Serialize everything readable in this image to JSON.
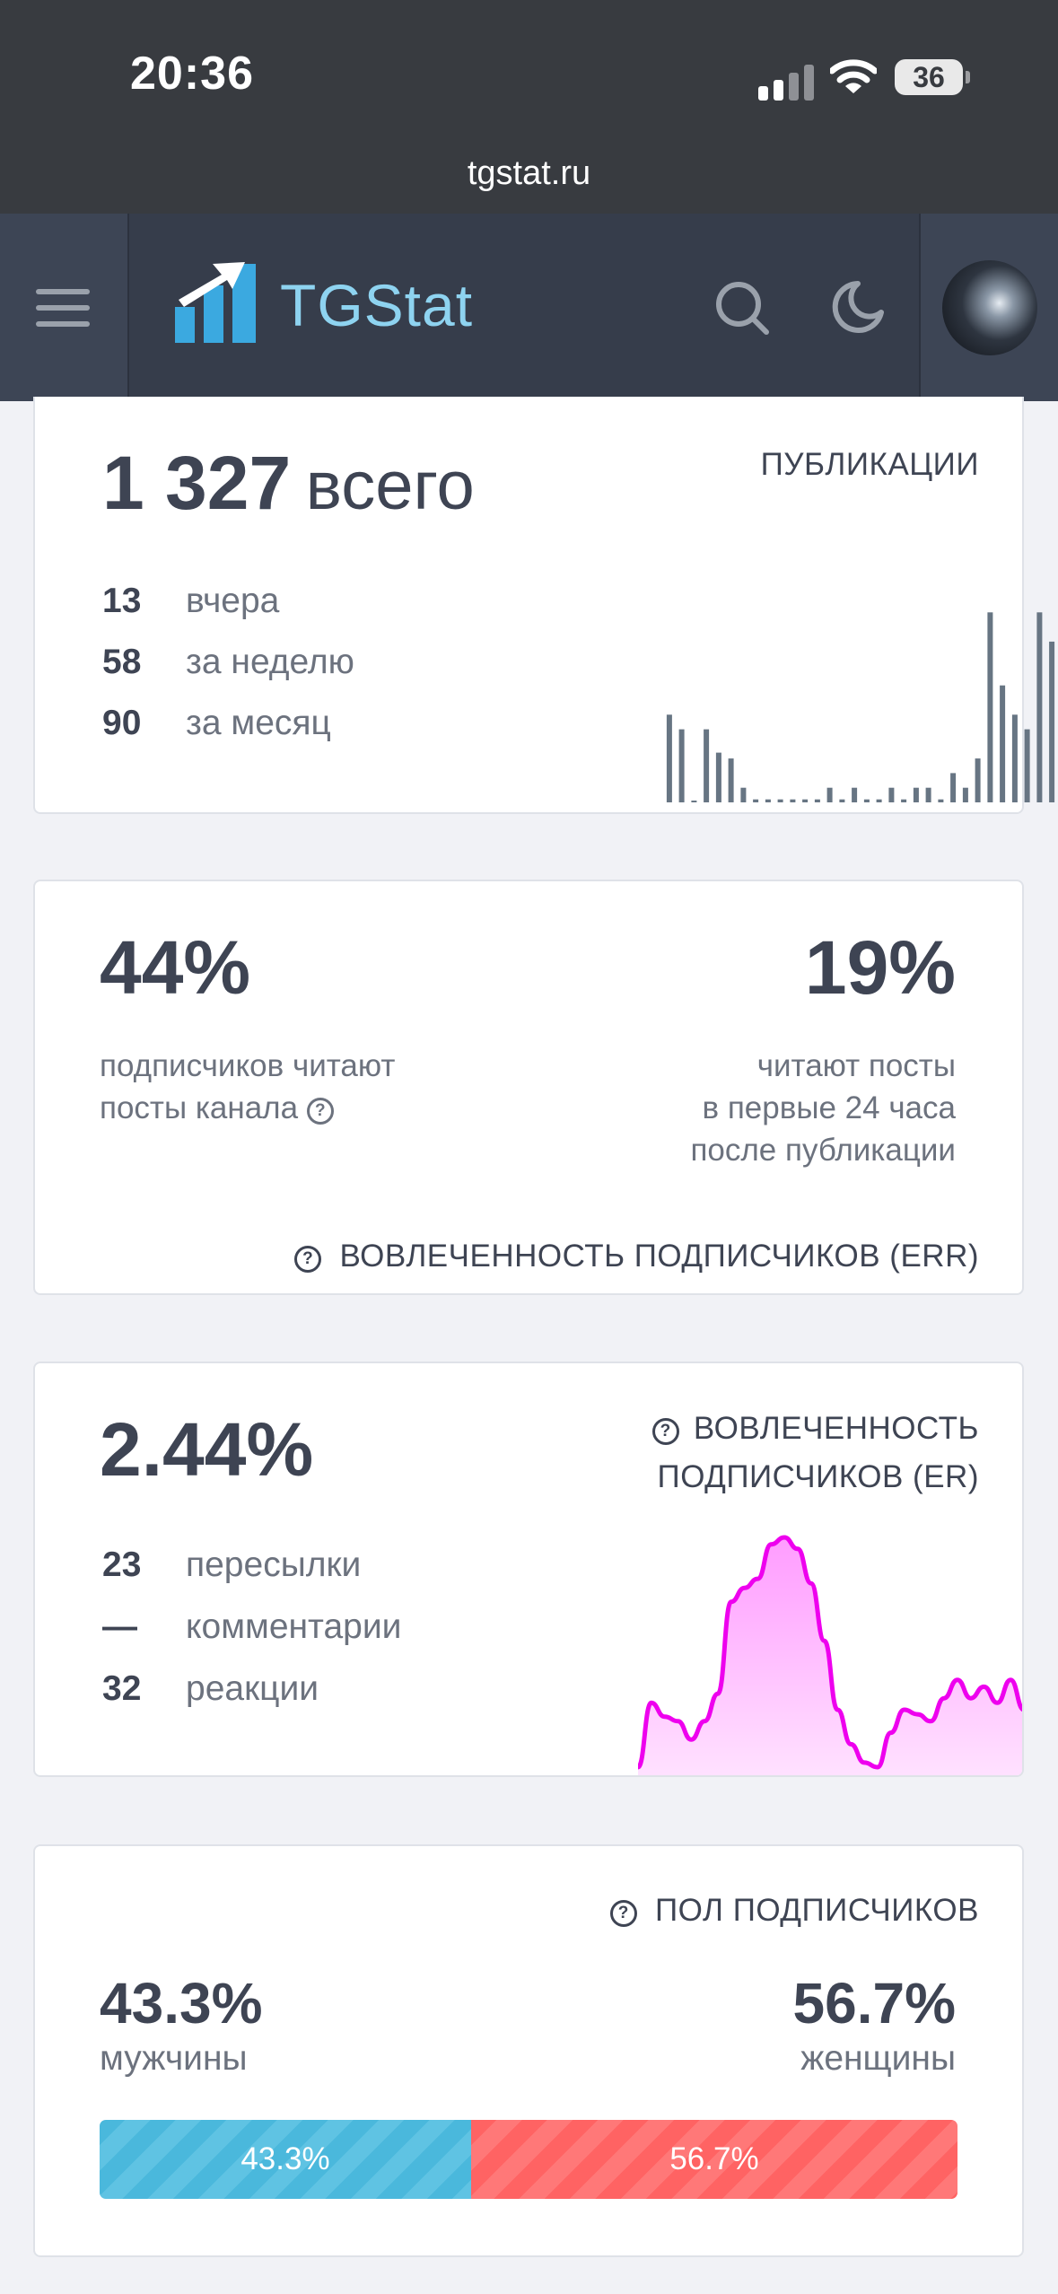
{
  "status_bar": {
    "time": "20:36",
    "battery": "36",
    "url": "tgstat.ru"
  },
  "navbar": {
    "logo_text": "TGStat"
  },
  "publications": {
    "total_value": "1 327",
    "total_label": "всего",
    "heading": "ПУБЛИКАЦИИ",
    "stats": [
      {
        "value": "13",
        "label": "вчера"
      },
      {
        "value": "58",
        "label": "за неделю"
      },
      {
        "value": "90",
        "label": "за месяц"
      }
    ]
  },
  "err": {
    "left_value": "44%",
    "left_desc_line1": "подписчиков читают",
    "left_desc_line2": "посты канала",
    "right_value": "19%",
    "right_desc_line1": "читают посты",
    "right_desc_line2": "в первые 24 часа",
    "right_desc_line3": "после публикации",
    "footer": "ВОВЛЕЧЕННОСТЬ ПОДПИСЧИКОВ (ERR)"
  },
  "er": {
    "value": "2.44%",
    "heading_line1": "ВОВЛЕЧЕННОСТЬ",
    "heading_line2": "ПОДПИСЧИКОВ (ER)",
    "stats": [
      {
        "value": "23",
        "label": "пересылки"
      },
      {
        "value": "—",
        "label": "комментарии"
      },
      {
        "value": "32",
        "label": "реакции"
      }
    ]
  },
  "gender": {
    "heading": "ПОЛ ПОДПИСЧИКОВ",
    "male_value": "43.3%",
    "male_label": "мужчины",
    "female_value": "56.7%",
    "female_label": "женщины",
    "bar_male_text": "43.3%",
    "bar_female_text": "56.7%",
    "male_share": 43.3,
    "female_share": 56.7
  },
  "chart_data": [
    {
      "type": "bar",
      "values": [
        30,
        25,
        0,
        25,
        17,
        15,
        5,
        1,
        1,
        1,
        1,
        1,
        1,
        5,
        1,
        5,
        1,
        1,
        5,
        1,
        5,
        5,
        1,
        10,
        5,
        15,
        65,
        40,
        30,
        25,
        65,
        55
      ],
      "color": "#677583"
    },
    {
      "type": "area",
      "values": [
        0,
        28,
        22,
        20,
        12,
        20,
        32,
        72,
        78,
        82,
        97,
        100,
        95,
        80,
        55,
        25,
        10,
        2,
        0,
        15,
        25,
        23,
        20,
        30,
        38,
        30,
        35,
        28,
        38,
        25
      ],
      "color": "#ee00ee"
    }
  ],
  "colors": {
    "male": "#4ab8dc",
    "female": "#ff6363",
    "accent": "#8ed3f0"
  },
  "icons": {
    "menu": "hamburger-icon",
    "search": "search-icon",
    "theme": "moon-icon",
    "help": "question-circle-icon"
  }
}
